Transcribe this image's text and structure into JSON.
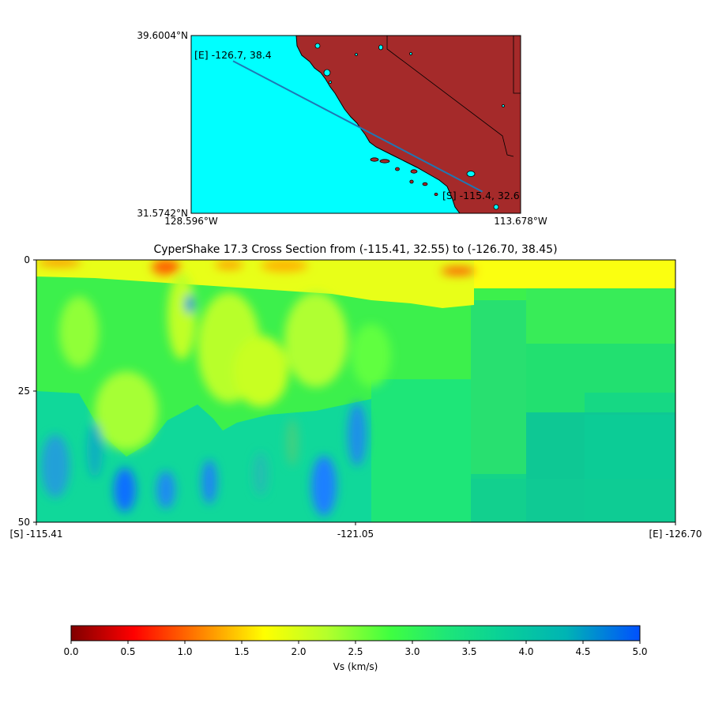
{
  "map": {
    "lat_top_label": "39.6004°N",
    "lat_bottom_label": "31.5742°N",
    "lon_left_label": "128.596°W",
    "lon_right_label": "113.678°W",
    "start_label": "[S] -115.4, 32.6",
    "end_label": "[E] -126.7, 38.4",
    "extent": {
      "lon_min": -128.596,
      "lon_max": -113.678,
      "lat_min": 31.5742,
      "lat_max": 39.6004
    },
    "start": {
      "lon": -115.41,
      "lat": 32.55
    },
    "end": {
      "lon": -126.7,
      "lat": 38.45
    },
    "colors": {
      "ocean": "#00ffff",
      "land": "#a52a2a",
      "path": "#1f77b4"
    }
  },
  "chart_data": {
    "type": "heatmap",
    "title": "CyperShake 17.3 Cross Section from (-115.41, 32.55) to (-126.70, 38.45)",
    "x_tick_labels": [
      "[S] -115.41",
      "-121.05",
      "[E] -126.70"
    ],
    "x_tick_fractions": [
      0,
      0.5,
      1
    ],
    "y_tick_labels": [
      "0",
      "25",
      "50"
    ],
    "y_ticks": [
      0,
      25,
      50
    ],
    "ylim": [
      50,
      0
    ],
    "ylabel": "",
    "xlabel": "",
    "grid": false,
    "colorbar": {
      "label": "Vs (km/s)",
      "ticks": [
        0.0,
        0.5,
        1.0,
        1.5,
        2.0,
        2.5,
        3.0,
        3.5,
        4.0,
        4.5,
        5.0
      ],
      "tick_labels": [
        "0.0",
        "0.5",
        "1.0",
        "1.5",
        "2.0",
        "2.5",
        "3.0",
        "3.5",
        "4.0",
        "4.5",
        "5.0"
      ],
      "range": [
        0,
        5
      ],
      "colormap": "jet_r"
    }
  }
}
